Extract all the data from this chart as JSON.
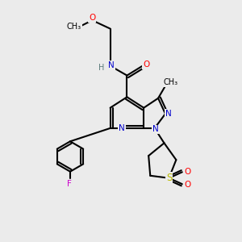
{
  "bg_color": "#ebebeb",
  "atom_colors": {
    "C": "#000000",
    "N": "#0000cc",
    "O": "#ff0000",
    "F": "#cc00cc",
    "S": "#bbbb00",
    "H": "#5a7a7a"
  },
  "bond_color": "#000000",
  "bond_width": 1.5,
  "figsize": [
    3.0,
    3.0
  ],
  "dpi": 100
}
